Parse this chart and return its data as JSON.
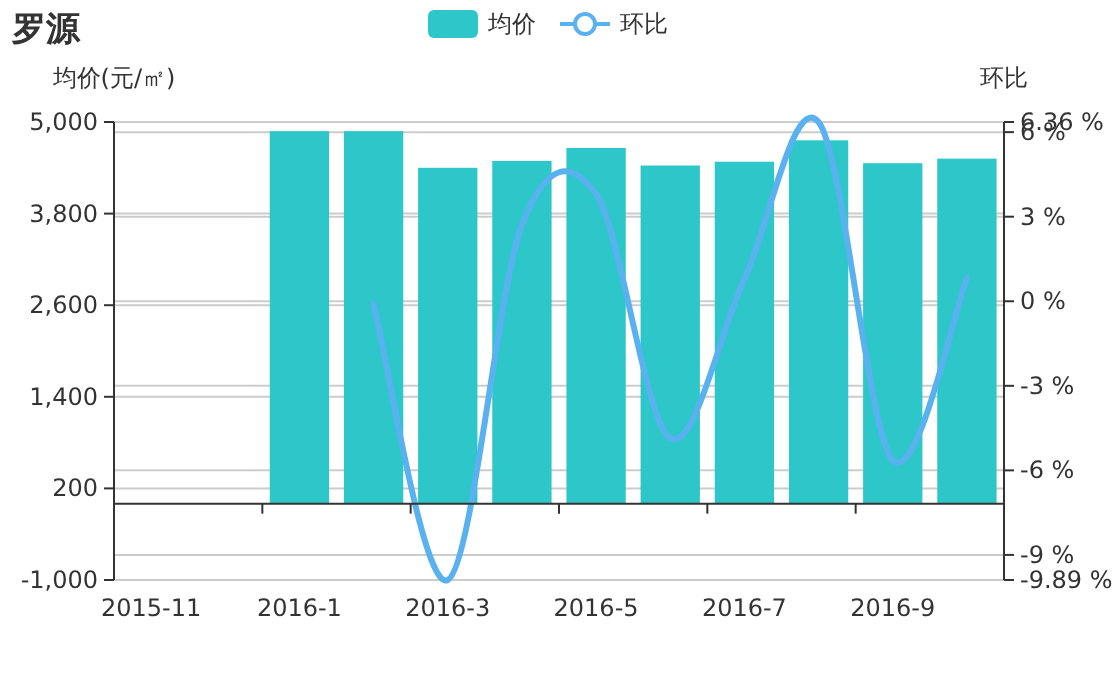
{
  "chart_data": {
    "type": "bar",
    "title": "罗源",
    "ylabel": "均价(元/㎡)",
    "y2label": "环比",
    "categories": [
      "2015-11",
      null,
      "2016-1",
      null,
      "2016-3",
      null,
      "2016-5",
      null,
      "2016-7",
      null,
      "2016-9",
      null
    ],
    "series": [
      {
        "name": "均价",
        "color": "#2ec7c9",
        "values": [
          null,
          null,
          4880,
          4880,
          4400,
          4490,
          4660,
          4430,
          4480,
          4760,
          4460,
          4520
        ]
      },
      {
        "name": "环比",
        "type": "line",
        "axis": "y2",
        "color": "#5ab1ef",
        "values": [
          null,
          null,
          null,
          -0.1,
          -9.89,
          2.7,
          3.8,
          -4.86,
          0.8,
          6.36,
          -5.64,
          0.82
        ]
      }
    ],
    "ylim": [
      -1000,
      5000
    ],
    "yticks": [
      {
        "value": -1000,
        "label": "-1,000"
      },
      200,
      {
        "value": 1400,
        "label": "1,400"
      },
      {
        "value": 2600,
        "label": "2,600"
      },
      {
        "value": 3800,
        "label": "3,800"
      },
      {
        "value": 5000,
        "label": "5,000"
      }
    ],
    "y2lim": [
      -9.89,
      6.36
    ],
    "y2ticks": [
      {
        "value": -9.89,
        "label": "-9.89 %"
      },
      {
        "value": -9,
        "label": "-9 %"
      },
      {
        "value": -6,
        "label": "-6 %"
      },
      {
        "value": -3,
        "label": "-3 %"
      },
      {
        "value": 0,
        "label": "0 %"
      },
      {
        "value": 3,
        "label": "3 %"
      },
      {
        "value": 6,
        "label": "6 %"
      },
      {
        "value": 6.36,
        "label": "6.36 %"
      }
    ],
    "grid": "y",
    "legend": "top"
  }
}
